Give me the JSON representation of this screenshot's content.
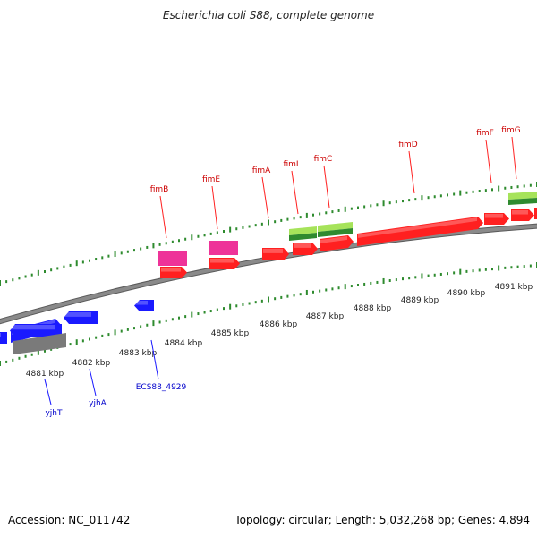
{
  "title": "Escherichia coli S88, complete genome",
  "footer": {
    "accession": "Accession: NC_011742",
    "summary": "Topology: circular; Length: 5,032,268 bp; Genes: 4,894"
  },
  "colors": {
    "backbone": "#8a8a8a",
    "tick": "#2e8b2e",
    "forward_gene": "#ff2020",
    "forward_label": "#cc0000",
    "reverse_gene": "#1a1aff",
    "reverse_label": "#0000cc",
    "pseudo_gene": "#7a7a7a",
    "magenta_feature": "#ee3399",
    "green_feature": "#66cc22"
  },
  "scale_ticks": [
    {
      "label": "4881 kbp"
    },
    {
      "label": "4882 kbp"
    },
    {
      "label": "4883 kbp"
    },
    {
      "label": "4884 kbp"
    },
    {
      "label": "4885 kbp"
    },
    {
      "label": "4886 kbp"
    },
    {
      "label": "4887 kbp"
    },
    {
      "label": "4888 kbp"
    },
    {
      "label": "4889 kbp"
    },
    {
      "label": "4890 kbp"
    },
    {
      "label": "4891 kbp"
    }
  ],
  "genes": [
    {
      "name": "fimB",
      "strand": "forward"
    },
    {
      "name": "fimE",
      "strand": "forward"
    },
    {
      "name": "fimA",
      "strand": "forward"
    },
    {
      "name": "fimI",
      "strand": "forward"
    },
    {
      "name": "fimC",
      "strand": "forward"
    },
    {
      "name": "fimD",
      "strand": "forward"
    },
    {
      "name": "fimF",
      "strand": "forward"
    },
    {
      "name": "fimG",
      "strand": "forward"
    },
    {
      "name": "yjhT",
      "strand": "reverse"
    },
    {
      "name": "yjhA",
      "strand": "reverse"
    },
    {
      "name": "ECS88_4929",
      "strand": "reverse"
    }
  ]
}
